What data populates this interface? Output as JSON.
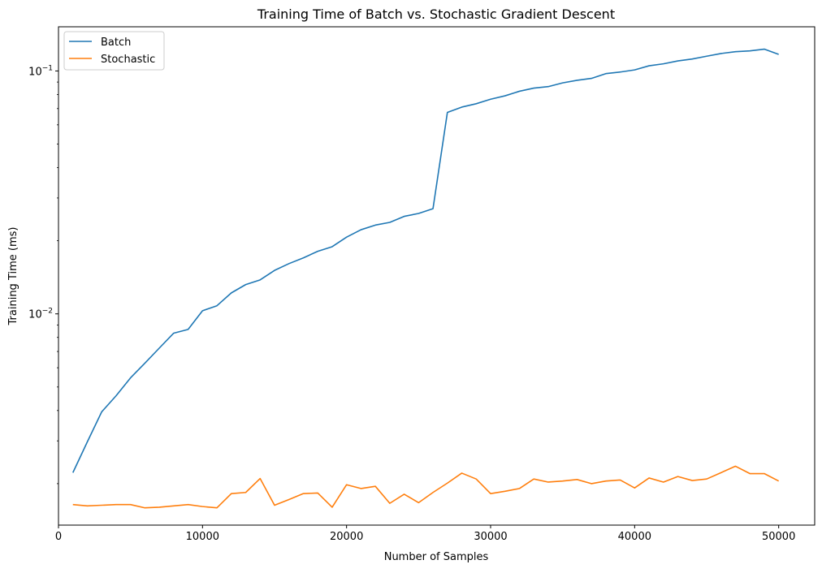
{
  "chart_data": {
    "type": "line",
    "title": "Training Time of Batch vs. Stochastic Gradient Descent",
    "xlabel": "Number of Samples",
    "ylabel": "Training Time (ms)",
    "xlim": [
      0,
      52500
    ],
    "ylim": [
      0.00135,
      0.152
    ],
    "yscale": "log",
    "grid": false,
    "legend_position": "top-left",
    "x_ticks": [
      0,
      10000,
      20000,
      30000,
      40000,
      50000
    ],
    "x_tick_labels": [
      "0",
      "10000",
      "20000",
      "30000",
      "40000",
      "50000"
    ],
    "y_ticks": [
      0.01,
      0.1
    ],
    "y_tick_base": "10",
    "y_tick_exponents": [
      "−2",
      "−1"
    ],
    "x": [
      1000,
      2000,
      3000,
      4000,
      5000,
      6000,
      7000,
      8000,
      9000,
      10000,
      11000,
      12000,
      13000,
      14000,
      15000,
      16000,
      17000,
      18000,
      19000,
      20000,
      21000,
      22000,
      23000,
      24000,
      25000,
      26000,
      27000,
      28000,
      29000,
      30000,
      31000,
      32000,
      33000,
      34000,
      35000,
      36000,
      37000,
      38000,
      39000,
      40000,
      41000,
      42000,
      43000,
      44000,
      45000,
      46000,
      47000,
      48000,
      49000,
      50000
    ],
    "series": [
      {
        "name": "Batch",
        "color": "#1f77b4",
        "values": [
          0.00222,
          0.00297,
          0.00395,
          0.0046,
          0.00545,
          0.00627,
          0.00723,
          0.00833,
          0.00863,
          0.0103,
          0.0108,
          0.0122,
          0.0132,
          0.0138,
          0.0151,
          0.0161,
          0.017,
          0.0181,
          0.0189,
          0.0207,
          0.0222,
          0.0232,
          0.0238,
          0.0252,
          0.0259,
          0.0271,
          0.0675,
          0.071,
          0.0733,
          0.0765,
          0.079,
          0.0825,
          0.085,
          0.0862,
          0.0893,
          0.0915,
          0.0932,
          0.0975,
          0.099,
          0.101,
          0.105,
          0.107,
          0.11,
          0.112,
          0.115,
          0.118,
          0.12,
          0.121,
          0.123,
          0.117
        ]
      },
      {
        "name": "Stochastic",
        "color": "#ff7f0e",
        "values": [
          0.00164,
          0.00162,
          0.00163,
          0.00164,
          0.00164,
          0.00159,
          0.0016,
          0.00162,
          0.00164,
          0.00161,
          0.00159,
          0.00182,
          0.00184,
          0.0021,
          0.00163,
          0.00172,
          0.00182,
          0.00183,
          0.0016,
          0.00198,
          0.00191,
          0.00195,
          0.00166,
          0.00181,
          0.00167,
          0.00184,
          0.00201,
          0.00221,
          0.00209,
          0.00182,
          0.00186,
          0.00191,
          0.00209,
          0.00203,
          0.00205,
          0.00208,
          0.002,
          0.00205,
          0.00207,
          0.00192,
          0.00211,
          0.00203,
          0.00214,
          0.00206,
          0.00209,
          0.00222,
          0.00236,
          0.0022,
          0.0022,
          0.00205
        ]
      }
    ]
  }
}
